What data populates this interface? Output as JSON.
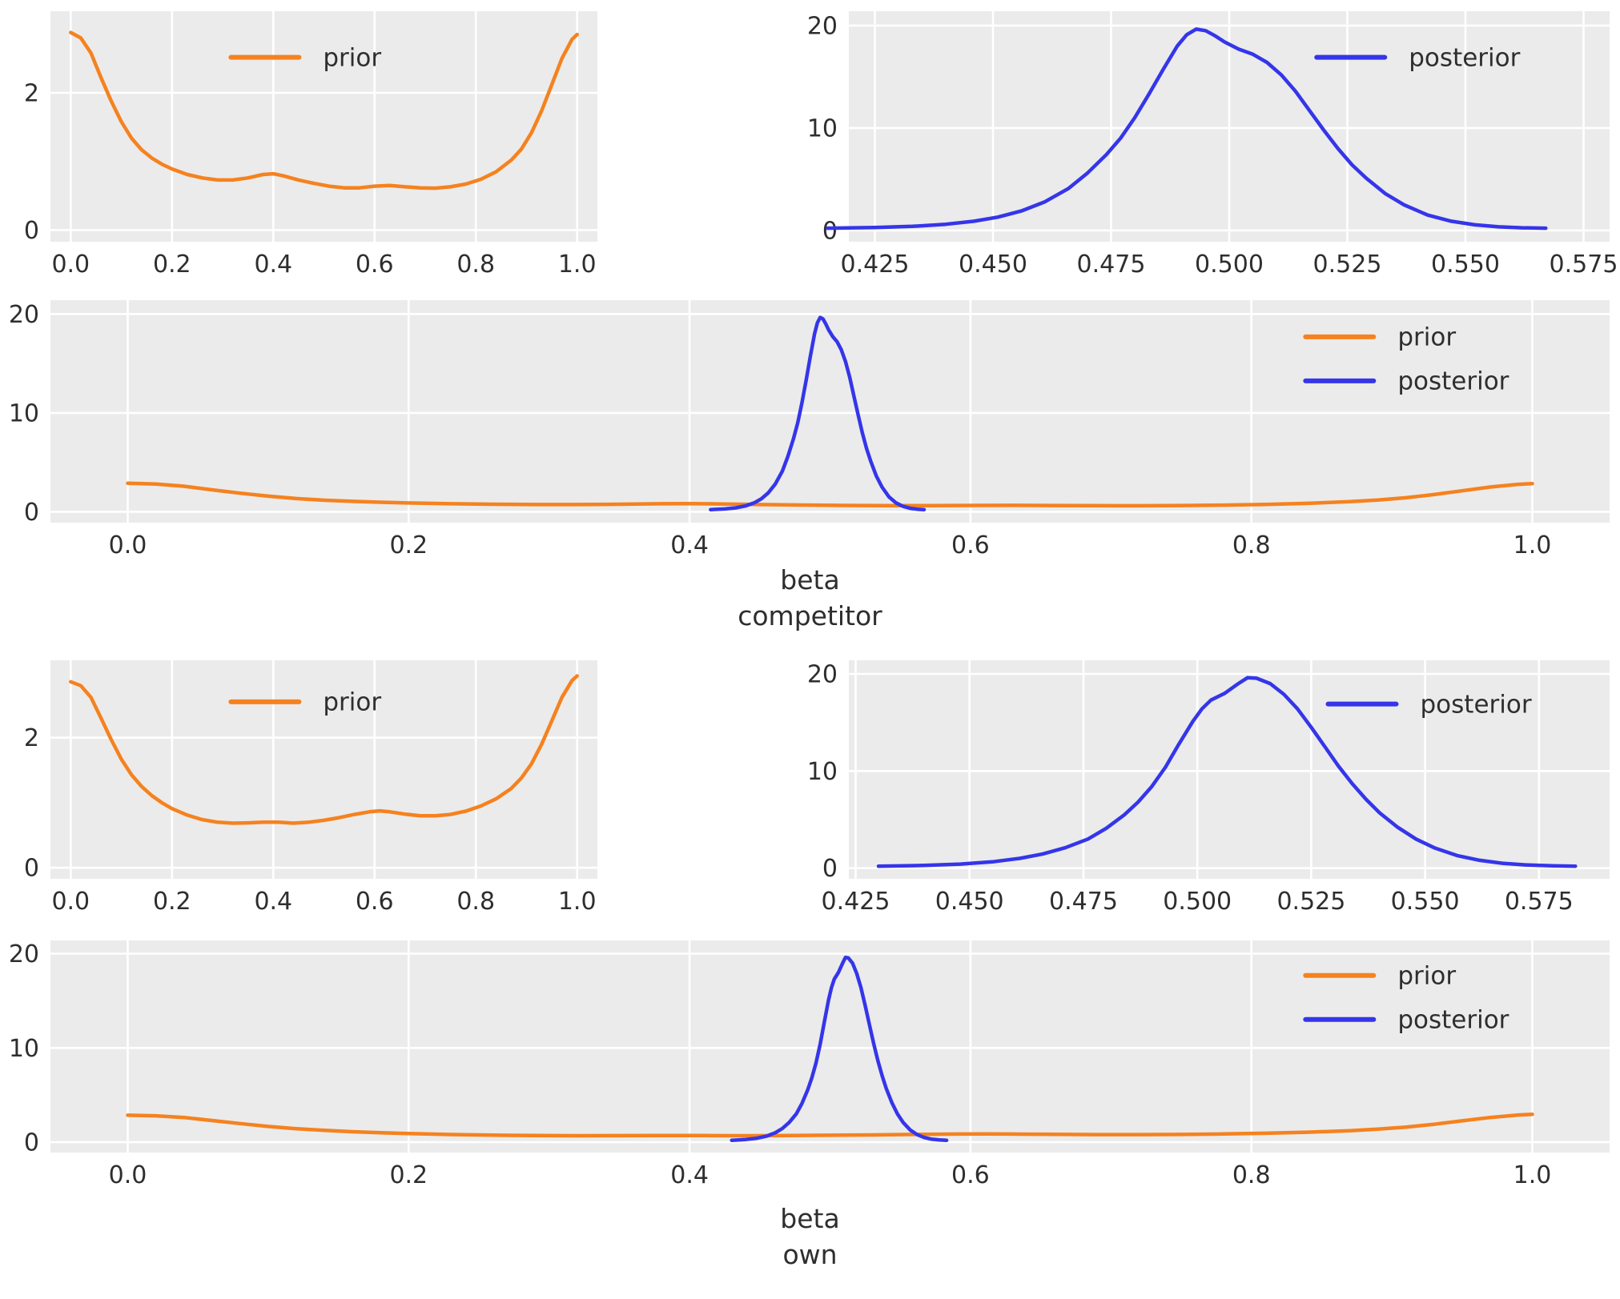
{
  "figure": {
    "background": "#ffffff",
    "axes_background": "#ebebeb",
    "grid_color": "#ffffff",
    "text_color": "#2e2e2e",
    "colors": {
      "prior": "#f5821f",
      "posterior": "#3535ea"
    }
  },
  "groups": [
    {
      "xlabel": "beta competitor"
    },
    {
      "xlabel": "beta own"
    }
  ],
  "datasets": {
    "prior_competitor": [
      [
        0.0,
        2.88
      ],
      [
        0.02,
        2.8
      ],
      [
        0.04,
        2.58
      ],
      [
        0.06,
        2.22
      ],
      [
        0.08,
        1.88
      ],
      [
        0.1,
        1.58
      ],
      [
        0.12,
        1.34
      ],
      [
        0.14,
        1.17
      ],
      [
        0.16,
        1.05
      ],
      [
        0.18,
        0.96
      ],
      [
        0.2,
        0.89
      ],
      [
        0.23,
        0.81
      ],
      [
        0.26,
        0.76
      ],
      [
        0.29,
        0.73
      ],
      [
        0.32,
        0.73
      ],
      [
        0.35,
        0.76
      ],
      [
        0.38,
        0.81
      ],
      [
        0.4,
        0.82
      ],
      [
        0.42,
        0.79
      ],
      [
        0.45,
        0.73
      ],
      [
        0.48,
        0.68
      ],
      [
        0.51,
        0.64
      ],
      [
        0.54,
        0.615
      ],
      [
        0.57,
        0.615
      ],
      [
        0.6,
        0.64
      ],
      [
        0.63,
        0.65
      ],
      [
        0.66,
        0.63
      ],
      [
        0.69,
        0.615
      ],
      [
        0.72,
        0.61
      ],
      [
        0.75,
        0.63
      ],
      [
        0.78,
        0.67
      ],
      [
        0.81,
        0.74
      ],
      [
        0.84,
        0.85
      ],
      [
        0.87,
        1.02
      ],
      [
        0.89,
        1.18
      ],
      [
        0.91,
        1.42
      ],
      [
        0.93,
        1.74
      ],
      [
        0.95,
        2.12
      ],
      [
        0.97,
        2.5
      ],
      [
        0.99,
        2.78
      ],
      [
        1.0,
        2.85
      ]
    ],
    "posterior_competitor": [
      [
        0.415,
        0.22
      ],
      [
        0.425,
        0.28
      ],
      [
        0.433,
        0.4
      ],
      [
        0.44,
        0.6
      ],
      [
        0.446,
        0.9
      ],
      [
        0.451,
        1.3
      ],
      [
        0.456,
        1.9
      ],
      [
        0.461,
        2.8
      ],
      [
        0.466,
        4.1
      ],
      [
        0.47,
        5.6
      ],
      [
        0.474,
        7.4
      ],
      [
        0.477,
        9.0
      ],
      [
        0.48,
        11.0
      ],
      [
        0.483,
        13.3
      ],
      [
        0.486,
        15.7
      ],
      [
        0.489,
        18.0
      ],
      [
        0.491,
        19.1
      ],
      [
        0.493,
        19.65
      ],
      [
        0.495,
        19.5
      ],
      [
        0.497,
        19.0
      ],
      [
        0.499,
        18.4
      ],
      [
        0.502,
        17.7
      ],
      [
        0.505,
        17.2
      ],
      [
        0.508,
        16.4
      ],
      [
        0.511,
        15.2
      ],
      [
        0.514,
        13.6
      ],
      [
        0.517,
        11.7
      ],
      [
        0.52,
        9.8
      ],
      [
        0.523,
        8.0
      ],
      [
        0.526,
        6.4
      ],
      [
        0.529,
        5.1
      ],
      [
        0.533,
        3.6
      ],
      [
        0.537,
        2.5
      ],
      [
        0.542,
        1.5
      ],
      [
        0.547,
        0.9
      ],
      [
        0.552,
        0.55
      ],
      [
        0.557,
        0.35
      ],
      [
        0.562,
        0.26
      ],
      [
        0.567,
        0.22
      ]
    ],
    "prior_own": [
      [
        0.0,
        2.86
      ],
      [
        0.02,
        2.8
      ],
      [
        0.04,
        2.62
      ],
      [
        0.06,
        2.3
      ],
      [
        0.08,
        1.97
      ],
      [
        0.1,
        1.67
      ],
      [
        0.12,
        1.43
      ],
      [
        0.14,
        1.25
      ],
      [
        0.16,
        1.11
      ],
      [
        0.18,
        1.0
      ],
      [
        0.2,
        0.91
      ],
      [
        0.23,
        0.81
      ],
      [
        0.26,
        0.74
      ],
      [
        0.29,
        0.7
      ],
      [
        0.32,
        0.685
      ],
      [
        0.35,
        0.69
      ],
      [
        0.38,
        0.7
      ],
      [
        0.41,
        0.7
      ],
      [
        0.44,
        0.685
      ],
      [
        0.47,
        0.7
      ],
      [
        0.5,
        0.73
      ],
      [
        0.53,
        0.77
      ],
      [
        0.56,
        0.82
      ],
      [
        0.59,
        0.86
      ],
      [
        0.61,
        0.875
      ],
      [
        0.63,
        0.86
      ],
      [
        0.66,
        0.825
      ],
      [
        0.69,
        0.8
      ],
      [
        0.72,
        0.8
      ],
      [
        0.75,
        0.82
      ],
      [
        0.78,
        0.87
      ],
      [
        0.81,
        0.95
      ],
      [
        0.84,
        1.06
      ],
      [
        0.87,
        1.22
      ],
      [
        0.89,
        1.38
      ],
      [
        0.91,
        1.6
      ],
      [
        0.93,
        1.9
      ],
      [
        0.95,
        2.26
      ],
      [
        0.97,
        2.62
      ],
      [
        0.99,
        2.88
      ],
      [
        1.0,
        2.95
      ]
    ],
    "posterior_own": [
      [
        0.43,
        0.2
      ],
      [
        0.44,
        0.28
      ],
      [
        0.448,
        0.42
      ],
      [
        0.455,
        0.65
      ],
      [
        0.461,
        1.0
      ],
      [
        0.466,
        1.45
      ],
      [
        0.471,
        2.1
      ],
      [
        0.476,
        3.0
      ],
      [
        0.48,
        4.1
      ],
      [
        0.484,
        5.5
      ],
      [
        0.487,
        6.8
      ],
      [
        0.49,
        8.4
      ],
      [
        0.493,
        10.4
      ],
      [
        0.496,
        12.8
      ],
      [
        0.499,
        15.1
      ],
      [
        0.501,
        16.4
      ],
      [
        0.503,
        17.3
      ],
      [
        0.506,
        18.0
      ],
      [
        0.509,
        19.0
      ],
      [
        0.511,
        19.6
      ],
      [
        0.513,
        19.55
      ],
      [
        0.516,
        19.0
      ],
      [
        0.519,
        17.9
      ],
      [
        0.522,
        16.4
      ],
      [
        0.525,
        14.5
      ],
      [
        0.528,
        12.5
      ],
      [
        0.531,
        10.5
      ],
      [
        0.534,
        8.7
      ],
      [
        0.537,
        7.1
      ],
      [
        0.54,
        5.7
      ],
      [
        0.544,
        4.2
      ],
      [
        0.548,
        3.0
      ],
      [
        0.552,
        2.1
      ],
      [
        0.557,
        1.3
      ],
      [
        0.562,
        0.8
      ],
      [
        0.567,
        0.5
      ],
      [
        0.572,
        0.33
      ],
      [
        0.578,
        0.24
      ],
      [
        0.583,
        0.2
      ]
    ]
  },
  "chart_data": [
    {
      "type": "line",
      "title": "",
      "xlabel": "",
      "ylabel": "",
      "grid": true,
      "xlim": [
        -0.04,
        1.04
      ],
      "ylim": [
        -0.17,
        3.19
      ],
      "xticks": {
        "values": [
          0.0,
          0.2,
          0.4,
          0.6,
          0.8,
          1.0
        ],
        "labels": [
          "0.0",
          "0.2",
          "0.4",
          "0.6",
          "0.8",
          "1.0"
        ]
      },
      "yticks": {
        "values": [
          0,
          2
        ],
        "labels": [
          "0",
          "2"
        ]
      },
      "series": [
        {
          "name": "prior",
          "data": "prior_competitor"
        }
      ],
      "legend": {
        "position": "upper center",
        "x": 0.33,
        "y": 0.2,
        "items": [
          "prior"
        ]
      }
    },
    {
      "type": "line",
      "title": "",
      "xlabel": "",
      "ylabel": "",
      "grid": true,
      "xlim": [
        0.4195,
        0.5805
      ],
      "ylim": [
        -1.1,
        21.4
      ],
      "xticks": {
        "values": [
          0.425,
          0.45,
          0.475,
          0.5,
          0.525,
          0.55,
          0.575
        ],
        "labels": [
          "0.425",
          "0.450",
          "0.475",
          "0.500",
          "0.525",
          "0.550",
          "0.575"
        ]
      },
      "yticks": {
        "values": [
          0,
          10,
          20
        ],
        "labels": [
          "0",
          "10",
          "20"
        ]
      },
      "series": [
        {
          "name": "posterior",
          "data": "posterior_competitor"
        }
      ],
      "legend": {
        "position": "upper right",
        "x": 0.615,
        "y": 0.2,
        "items": [
          "posterior"
        ]
      }
    },
    {
      "type": "line",
      "title": "",
      "xlabel": "beta competitor",
      "ylabel": "",
      "grid": true,
      "xlabel_lines": [
        "beta",
        "competitor"
      ],
      "xlim": [
        -0.055,
        1.055
      ],
      "ylim": [
        -1.1,
        21.4
      ],
      "xticks": {
        "values": [
          0.0,
          0.2,
          0.4,
          0.6,
          0.8,
          1.0
        ],
        "labels": [
          "0.0",
          "0.2",
          "0.4",
          "0.6",
          "0.8",
          "1.0"
        ]
      },
      "yticks": {
        "values": [
          0,
          10,
          20
        ],
        "labels": [
          "0",
          "10",
          "20"
        ]
      },
      "series": [
        {
          "name": "prior",
          "data": "prior_competitor"
        },
        {
          "name": "posterior",
          "data": "posterior_competitor"
        }
      ],
      "legend": {
        "position": "upper right",
        "x": 0.805,
        "y": 0.165,
        "items": [
          "prior",
          "posterior"
        ]
      }
    },
    {
      "type": "line",
      "title": "",
      "xlabel": "",
      "ylabel": "",
      "grid": true,
      "xlim": [
        -0.04,
        1.04
      ],
      "ylim": [
        -0.17,
        3.19
      ],
      "xticks": {
        "values": [
          0.0,
          0.2,
          0.4,
          0.6,
          0.8,
          1.0
        ],
        "labels": [
          "0.0",
          "0.2",
          "0.4",
          "0.6",
          "0.8",
          "1.0"
        ]
      },
      "yticks": {
        "values": [
          0,
          2
        ],
        "labels": [
          "0",
          "2"
        ]
      },
      "series": [
        {
          "name": "prior",
          "data": "prior_own"
        }
      ],
      "legend": {
        "position": "upper center",
        "x": 0.33,
        "y": 0.19,
        "items": [
          "prior"
        ]
      }
    },
    {
      "type": "line",
      "title": "",
      "xlabel": "",
      "ylabel": "",
      "grid": true,
      "xlim": [
        0.4235,
        0.5905
      ],
      "ylim": [
        -1.1,
        21.4
      ],
      "xticks": {
        "values": [
          0.425,
          0.45,
          0.475,
          0.5,
          0.525,
          0.55,
          0.575
        ],
        "labels": [
          "0.425",
          "0.450",
          "0.475",
          "0.500",
          "0.525",
          "0.550",
          "0.575"
        ]
      },
      "yticks": {
        "values": [
          0,
          10,
          20
        ],
        "labels": [
          "0",
          "10",
          "20"
        ]
      },
      "series": [
        {
          "name": "posterior",
          "data": "posterior_own"
        }
      ],
      "legend": {
        "position": "upper right",
        "x": 0.63,
        "y": 0.2,
        "items": [
          "posterior"
        ]
      }
    },
    {
      "type": "line",
      "title": "",
      "xlabel": "beta own",
      "ylabel": "",
      "grid": true,
      "xlabel_lines": [
        "beta",
        "own"
      ],
      "xlim": [
        -0.055,
        1.055
      ],
      "ylim": [
        -1.1,
        21.4
      ],
      "xticks": {
        "values": [
          0.0,
          0.2,
          0.4,
          0.6,
          0.8,
          1.0
        ],
        "labels": [
          "0.0",
          "0.2",
          "0.4",
          "0.6",
          "0.8",
          "1.0"
        ]
      },
      "yticks": {
        "values": [
          0,
          10,
          20
        ],
        "labels": [
          "0",
          "10",
          "20"
        ]
      },
      "series": [
        {
          "name": "prior",
          "data": "prior_own"
        },
        {
          "name": "posterior",
          "data": "posterior_own"
        }
      ],
      "legend": {
        "position": "upper right",
        "x": 0.805,
        "y": 0.165,
        "items": [
          "prior",
          "posterior"
        ]
      }
    }
  ]
}
